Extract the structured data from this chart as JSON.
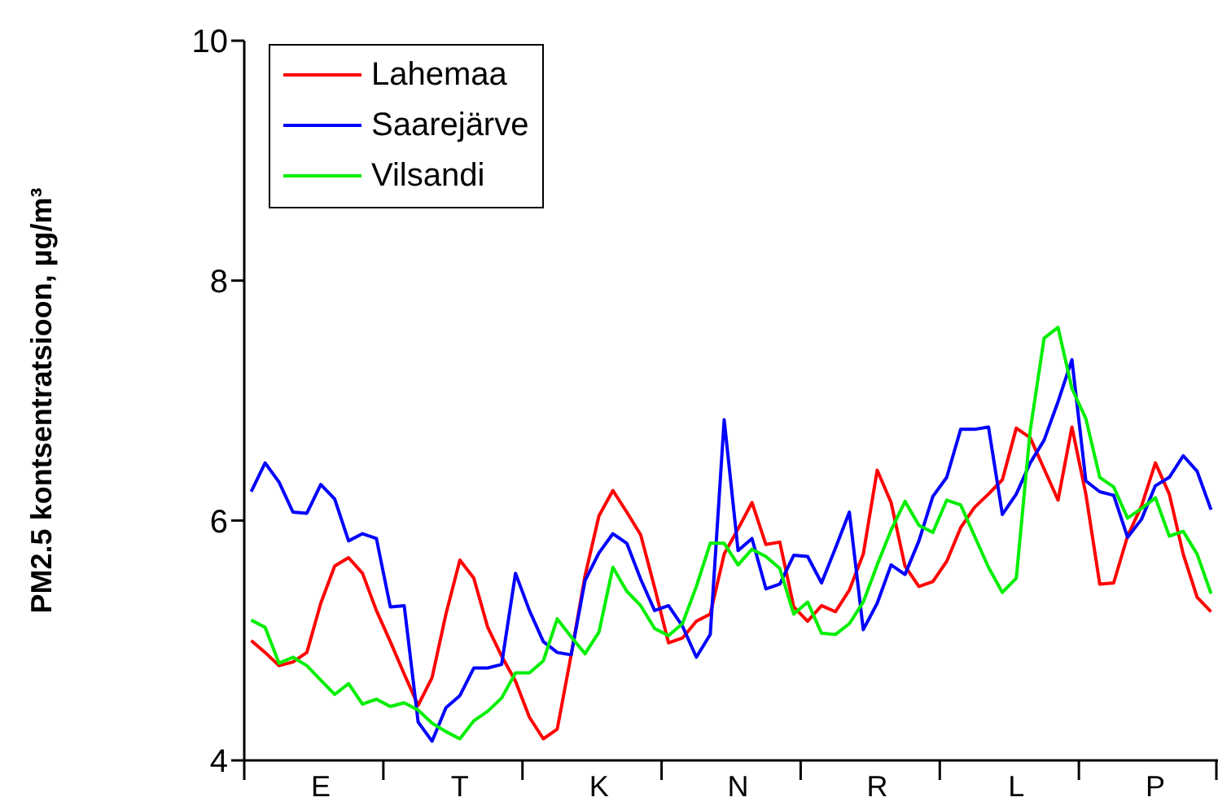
{
  "chart_data": {
    "type": "line",
    "ylabel": "PM2.5 kontsentratsioon, µg/m³",
    "categories": [
      null,
      null,
      null,
      null,
      null,
      "E",
      null,
      null,
      null,
      null,
      null,
      null,
      null,
      null,
      null,
      "T",
      null,
      null,
      null,
      null,
      null,
      null,
      null,
      null,
      null,
      "K",
      null,
      null,
      null,
      null,
      null,
      null,
      null,
      null,
      null,
      "N",
      null,
      null,
      null,
      null,
      null,
      null,
      null,
      null,
      null,
      "R",
      null,
      null,
      null,
      null,
      null,
      null,
      null,
      null,
      null,
      "L",
      null,
      null,
      null,
      null,
      null,
      null,
      null,
      null,
      null,
      "P",
      null,
      null,
      null,
      null
    ],
    "ylim": [
      4,
      10
    ],
    "yticks": [
      4,
      6,
      8,
      10
    ],
    "grid": false,
    "legend": "top left",
    "marker": "none",
    "line_style": "solid",
    "series": [
      {
        "name": "Lahemaa",
        "color": "#ff0000",
        "values": [
          5.0,
          4.9,
          4.79,
          4.82,
          4.9,
          5.31,
          5.62,
          5.69,
          5.56,
          5.25,
          4.99,
          4.72,
          4.46,
          4.69,
          5.22,
          5.67,
          5.52,
          5.11,
          4.87,
          4.66,
          4.36,
          4.18,
          4.26,
          4.88,
          5.54,
          6.04,
          6.25,
          6.07,
          5.88,
          5.44,
          4.98,
          5.02,
          5.16,
          5.22,
          5.72,
          5.93,
          6.15,
          5.8,
          5.82,
          5.28,
          5.16,
          5.29,
          5.24,
          5.42,
          5.72,
          6.42,
          6.15,
          5.62,
          5.45,
          5.49,
          5.66,
          5.94,
          6.11,
          6.22,
          6.34,
          6.77,
          6.69,
          6.43,
          6.17,
          6.78,
          6.22,
          5.47,
          5.48,
          5.87,
          6.12,
          6.48,
          6.22,
          5.72,
          5.36,
          5.24
        ]
      },
      {
        "name": "Saarejärve",
        "color": "#0000ff",
        "values": [
          6.24,
          6.48,
          6.32,
          6.07,
          6.06,
          6.3,
          6.18,
          5.83,
          5.89,
          5.85,
          5.28,
          5.29,
          4.32,
          4.16,
          4.44,
          4.54,
          4.77,
          4.77,
          4.8,
          5.56,
          5.25,
          4.99,
          4.9,
          4.88,
          5.5,
          5.73,
          5.89,
          5.81,
          5.51,
          5.25,
          5.29,
          5.12,
          4.86,
          5.05,
          6.84,
          5.75,
          5.85,
          5.43,
          5.47,
          5.71,
          5.7,
          5.48,
          5.77,
          6.07,
          5.09,
          5.31,
          5.63,
          5.55,
          5.83,
          6.2,
          6.36,
          6.76,
          6.76,
          6.78,
          6.05,
          6.22,
          6.48,
          6.67,
          6.99,
          7.34,
          6.33,
          6.24,
          6.21,
          5.86,
          6.01,
          6.29,
          6.36,
          6.54,
          6.41,
          6.09
        ]
      },
      {
        "name": "Vilsandi",
        "color": "#00ee00",
        "values": [
          5.17,
          5.11,
          4.81,
          4.86,
          4.79,
          4.67,
          4.55,
          4.64,
          4.47,
          4.51,
          4.45,
          4.48,
          4.42,
          4.31,
          4.24,
          4.18,
          4.33,
          4.41,
          4.52,
          4.73,
          4.73,
          4.83,
          5.18,
          5.03,
          4.89,
          5.07,
          5.61,
          5.41,
          5.29,
          5.1,
          5.04,
          5.14,
          5.45,
          5.81,
          5.81,
          5.63,
          5.76,
          5.7,
          5.6,
          5.22,
          5.32,
          5.06,
          5.05,
          5.14,
          5.32,
          5.63,
          5.92,
          6.16,
          5.96,
          5.9,
          6.17,
          6.13,
          5.87,
          5.61,
          5.4,
          5.52,
          6.75,
          7.52,
          7.61,
          7.1,
          6.85,
          6.36,
          6.28,
          6.02,
          6.1,
          6.19,
          5.87,
          5.91,
          5.72,
          5.39
        ]
      }
    ]
  }
}
